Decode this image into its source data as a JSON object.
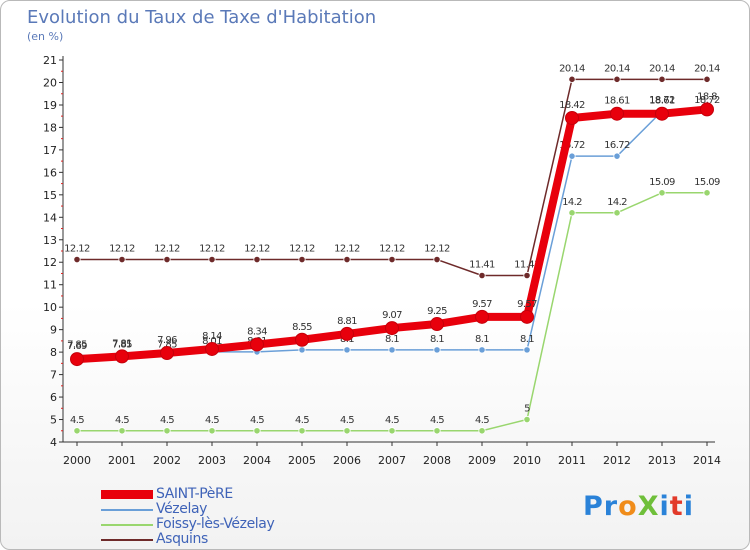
{
  "title": "Evolution du Taux de Taxe d'Habitation",
  "subtitle": "(en %)",
  "logo": {
    "text": "ProXiti",
    "letter_colors": [
      "#2a82d8",
      "#2a82d8",
      "#f08c1a",
      "#6fbf3a",
      "#2a82d8",
      "#e23a2a",
      "#2a82d8"
    ]
  },
  "chart_data": {
    "type": "line",
    "categories": [
      "2000",
      "2001",
      "2002",
      "2003",
      "2004",
      "2005",
      "2006",
      "2007",
      "2008",
      "2009",
      "2010",
      "2011",
      "2012",
      "2013",
      "2014"
    ],
    "y_ticks": [
      "4",
      "5",
      "6",
      "7",
      "8",
      "9",
      "10",
      "11",
      "12",
      "13",
      "14",
      "15",
      "16",
      "17",
      "18",
      "19",
      "20",
      "21"
    ],
    "ylim": [
      4,
      21
    ],
    "legend_position": "bottom-left",
    "grid": false,
    "series": [
      {
        "name": "Asquins",
        "color": "#6e2a2a",
        "thick": false,
        "values": [
          12.12,
          12.12,
          12.12,
          12.12,
          12.12,
          12.12,
          12.12,
          12.12,
          12.12,
          11.41,
          11.41,
          20.14,
          20.14,
          20.14,
          20.14
        ],
        "labels": [
          "12.12",
          "12.12",
          "12.12",
          "12.12",
          "12.12",
          "12.12",
          "12.12",
          "12.12",
          "12.12",
          "11.41",
          "11.41",
          "20.14",
          "20.14",
          "20.14",
          "20.14"
        ]
      },
      {
        "name": "Foissy-lès-Vézelay",
        "color": "#99d66e",
        "thick": false,
        "values": [
          4.5,
          4.5,
          4.5,
          4.5,
          4.5,
          4.5,
          4.5,
          4.5,
          4.5,
          4.5,
          5,
          14.2,
          14.2,
          15.09,
          15.09
        ],
        "labels": [
          "4.5",
          "4.5",
          "4.5",
          "4.5",
          "4.5",
          "4.5",
          "4.5",
          "4.5",
          "4.5",
          "4.5",
          "5",
          "14.2",
          "14.2",
          "15.09",
          "15.09"
        ]
      },
      {
        "name": "Vézelay",
        "color": "#6a9fd8",
        "thick": false,
        "values": [
          7.85,
          7.85,
          7.85,
          8.01,
          8.01,
          8.1,
          8.1,
          8.1,
          8.1,
          8.1,
          8.1,
          16.72,
          16.72,
          18.72,
          18.72
        ],
        "labels": [
          "7.85",
          "7.85",
          "7.85",
          "8.01",
          "8.01",
          "8.1",
          "8.1",
          "8.1",
          "8.1",
          "8.1",
          "8.1",
          "16.72",
          "16.72",
          "18.72",
          "18.72"
        ]
      },
      {
        "name": "SAINT-PèRE",
        "color": "#e8000c",
        "thick": true,
        "values": [
          7.69,
          7.81,
          7.96,
          8.14,
          8.34,
          8.55,
          8.81,
          9.07,
          9.25,
          9.57,
          9.57,
          18.42,
          18.61,
          18.61,
          18.8
        ],
        "labels": [
          "7.69",
          "7.81",
          "7.96",
          "8.14",
          "8.34",
          "8.55",
          "8.81",
          "9.07",
          "9.25",
          "9.57",
          "9.57",
          "18.42",
          "18.61",
          "18.61",
          "18.8"
        ]
      }
    ],
    "legend_order": [
      "SAINT-PèRE",
      "Vézelay",
      "Foissy-lès-Vézelay",
      "Asquins"
    ]
  }
}
